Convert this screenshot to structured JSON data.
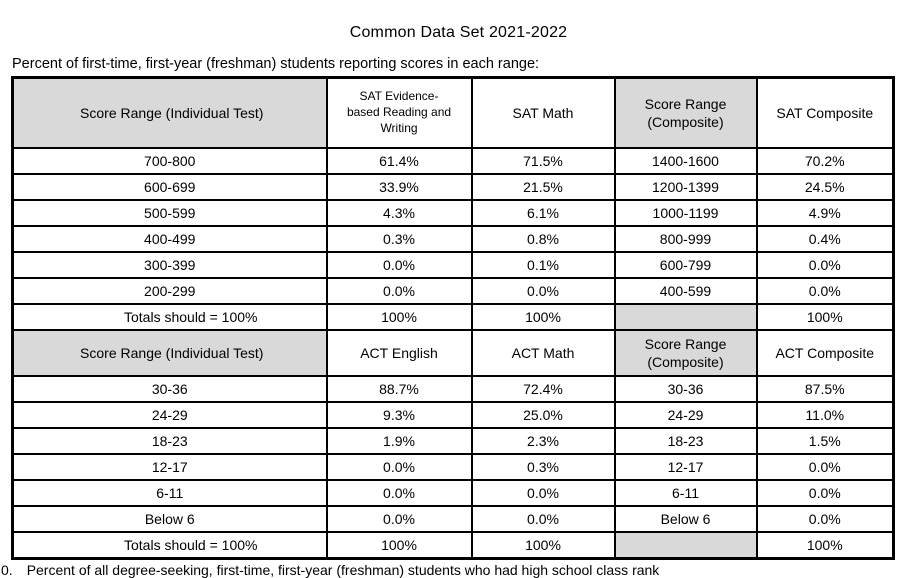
{
  "title": "Common Data Set 2021-2022",
  "subtitle": "Percent of first-time, first-year (freshman) students reporting scores in each range:",
  "colors": {
    "header_gray": "#d9d9d9",
    "border": "#000000",
    "text": "#000000",
    "background": "#ffffff"
  },
  "table": {
    "sections": [
      {
        "header": [
          "Score Range (Individual Test)",
          "SAT Evidence-\nbased Reading and\nWriting",
          "SAT Math",
          "Score Range (Composite)",
          "SAT Composite"
        ],
        "rows": [
          [
            "700-800",
            "61.4%",
            "71.5%",
            "1400-1600",
            "70.2%"
          ],
          [
            "600-699",
            "33.9%",
            "21.5%",
            "1200-1399",
            "24.5%"
          ],
          [
            "500-599",
            "4.3%",
            "6.1%",
            "1000-1199",
            "4.9%"
          ],
          [
            "400-499",
            "0.3%",
            "0.8%",
            "800-999",
            "0.4%"
          ],
          [
            "300-399",
            "0.0%",
            "0.1%",
            "600-799",
            "0.0%"
          ],
          [
            "200-299",
            "0.0%",
            "0.0%",
            "400-599",
            "0.0%"
          ]
        ],
        "totals": [
          "Totals should = 100%",
          "100%",
          "100%",
          "",
          "100%"
        ]
      },
      {
        "header": [
          "Score Range (Individual Test)",
          "ACT English",
          "ACT Math",
          "Score Range (Composite)",
          "ACT Composite"
        ],
        "rows": [
          [
            "30-36",
            "88.7%",
            "72.4%",
            "30-36",
            "87.5%"
          ],
          [
            "24-29",
            "9.3%",
            "25.0%",
            "24-29",
            "11.0%"
          ],
          [
            "18-23",
            "1.9%",
            "2.3%",
            "18-23",
            "1.5%"
          ],
          [
            "12-17",
            "0.0%",
            "0.3%",
            "12-17",
            "0.0%"
          ],
          [
            "6-11",
            "0.0%",
            "0.0%",
            "6-11",
            "0.0%"
          ],
          [
            "Below 6",
            "0.0%",
            "0.0%",
            "Below 6",
            "0.0%"
          ]
        ],
        "totals": [
          "Totals should = 100%",
          "100%",
          "100%",
          "",
          "100%"
        ]
      }
    ]
  },
  "footnote": {
    "marker": "0.",
    "text": "Percent of all degree-seeking, first-time, first-year (freshman) students who had high school class rank"
  }
}
